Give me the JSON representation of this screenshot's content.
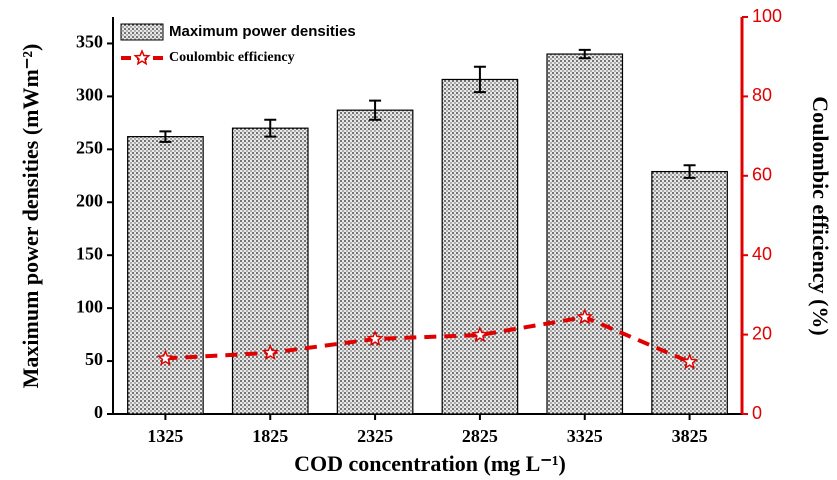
{
  "chart_data": {
    "type": "bar",
    "x_label": "COD concentration (mg L⁻¹)",
    "y_label": "Maximum power densities (mWm⁻²)",
    "y2_label": "Coulombic efficiency (%)",
    "categories": [
      "1325",
      "1825",
      "2325",
      "2825",
      "3325",
      "3825"
    ],
    "series": [
      {
        "name": "Maximum power densities",
        "color": "#cfcfcf",
        "values": [
          262,
          270,
          287,
          316,
          340,
          229
        ],
        "errors": [
          5,
          8,
          9,
          12,
          4,
          6
        ]
      },
      {
        "name": "Coulombic efficiency",
        "color": "#e00000",
        "axis": "y2",
        "values": [
          14,
          15.4,
          18.9,
          19.9,
          24.4,
          13.1
        ]
      }
    ],
    "ylim": [
      0,
      375
    ],
    "yticks": [
      0,
      50,
      100,
      150,
      200,
      250,
      300,
      350
    ],
    "y2lim": [
      0,
      100
    ],
    "y2ticks": [
      0,
      20,
      40,
      60,
      80,
      100
    ],
    "legend": "upper-left"
  }
}
